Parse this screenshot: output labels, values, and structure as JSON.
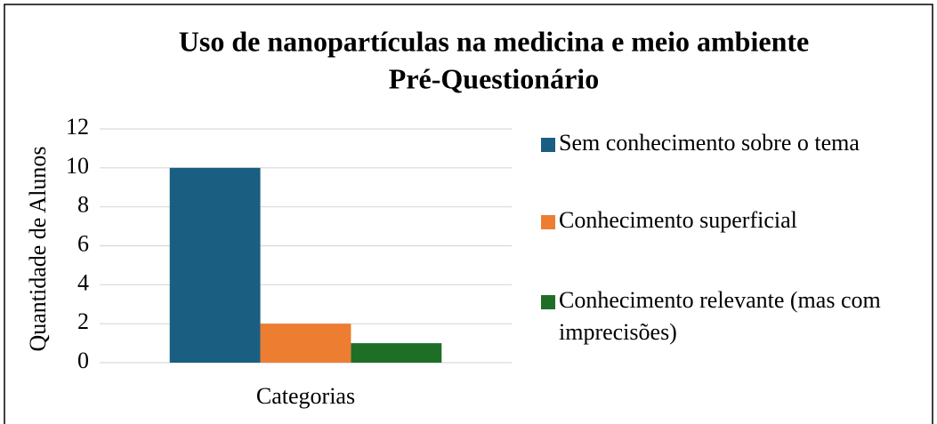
{
  "chart_data": {
    "type": "bar",
    "title": [
      "Uso de nanopartículas na medicina e meio ambiente",
      "Pré-Questionário"
    ],
    "ylabel": "Quantidade de Alunos",
    "categories": [
      "Categorias"
    ],
    "series": [
      {
        "name": "Sem conhecimento sobre o tema",
        "color": "#1a5e82",
        "values": [
          10
        ]
      },
      {
        "name": "Conhecimento superficial",
        "color": "#ed7d31",
        "values": [
          2
        ]
      },
      {
        "name": "Conhecimento relevante (mas com imprecisões)",
        "color": "#1e6e28",
        "values": [
          1
        ]
      }
    ],
    "ylim": [
      0,
      12
    ],
    "yticks": [
      0,
      2,
      4,
      6,
      8,
      10,
      12
    ],
    "grid": true,
    "legend": "right"
  }
}
